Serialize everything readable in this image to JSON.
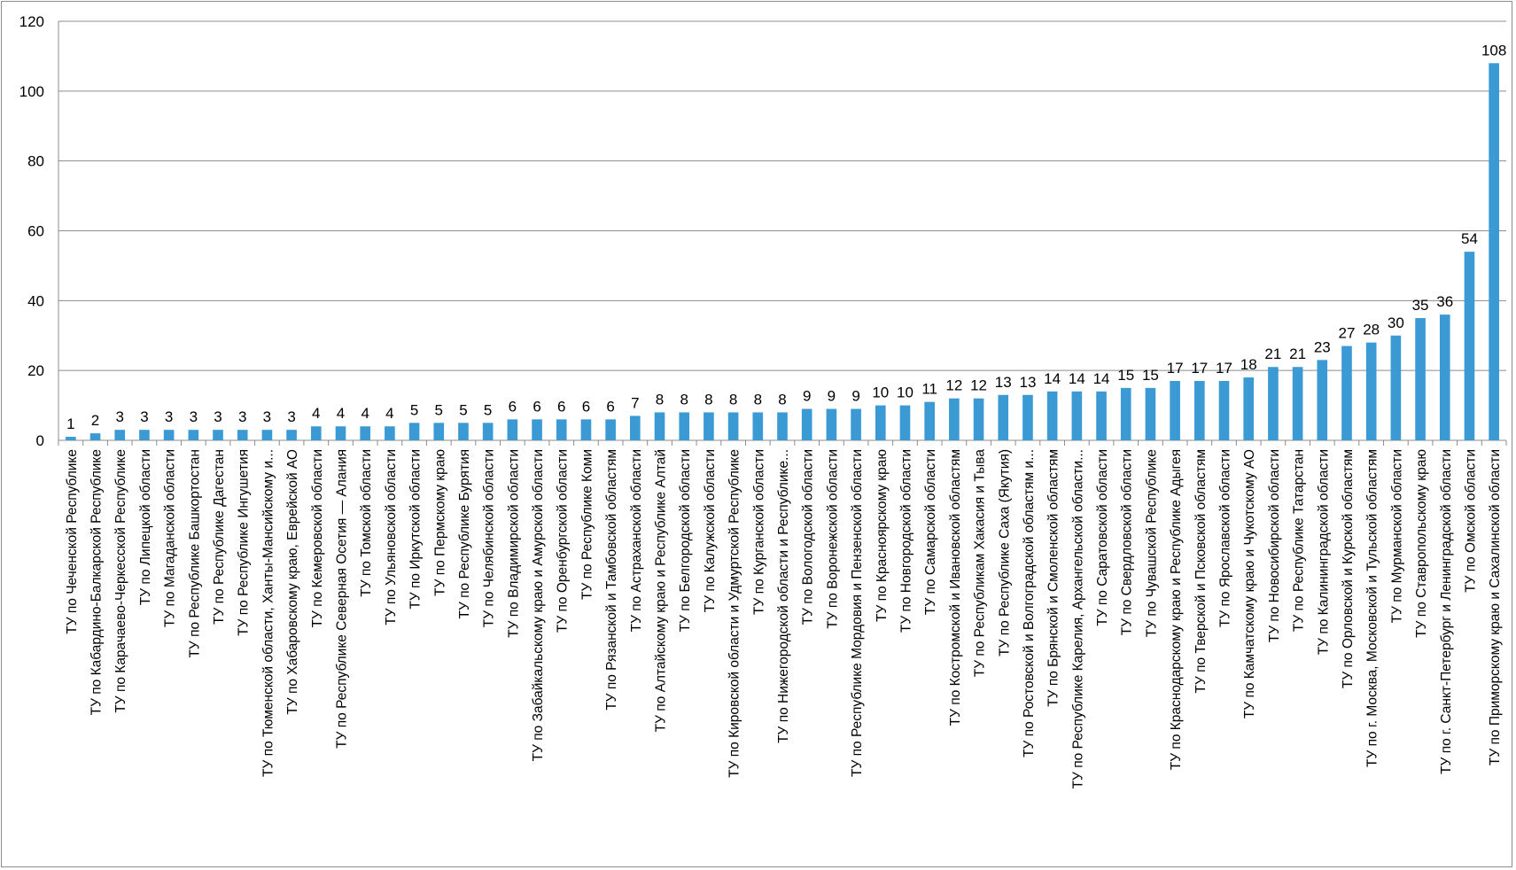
{
  "colors": {
    "bar": "#3b9ad4",
    "grid": "#8c8c8c",
    "axis": "#8c8c8c"
  },
  "chart_data": {
    "type": "bar",
    "title": "",
    "xlabel": "",
    "ylabel": "",
    "ylim": [
      0,
      120
    ],
    "yticks": [
      0,
      20,
      40,
      60,
      80,
      100,
      120
    ],
    "grid": true,
    "legend": "none",
    "categories": [
      "ТУ по Чеченской Республике",
      "ТУ по Кабардино-Балкарской Республике",
      "ТУ по Карачаево-Черкесской Республике",
      "ТУ по Липецкой области",
      "ТУ по Магаданской области",
      "ТУ по Республике Башкортостан",
      "ТУ по Республике Дагестан",
      "ТУ по Республике Ингушетия",
      "ТУ по Тюменской области, Ханты-Мансийскому и...",
      "ТУ по Хабаровскому краю, Еврейской АО",
      "ТУ по Кемеровской области",
      "ТУ по Республике Северная Осетия — Алания",
      "ТУ по Томской области",
      "ТУ по Ульяновской области",
      "ТУ по Иркутской области",
      "ТУ по Пермскому краю",
      "ТУ по Республике Бурятия",
      "ТУ по Челябинской области",
      "ТУ по Владимирской области",
      "ТУ по Забайкальскому краю и Амурской области",
      "ТУ по Оренбургской области",
      "ТУ по Республике Коми",
      "ТУ по Рязанской и Тамбовской областям",
      "ТУ по Астраханской области",
      "ТУ по Алтайскому краю и Республике Алтай",
      "ТУ по Белгородской области",
      "ТУ по Калужской области",
      "ТУ по Кировской области и Удмуртской Республике",
      "ТУ по Курганской области",
      "ТУ по Нижегородской области и Республике...",
      "ТУ по Вологодской области",
      "ТУ по Воронежской области",
      "ТУ по Республике Мордовия и Пензенской области",
      "ТУ по Красноярскому краю",
      "ТУ по Новгородской области",
      "ТУ по Самарской области",
      "ТУ по Костромской и Ивановской областям",
      "ТУ по Республикам Хакасия и Тыва",
      "ТУ по Республике Саха (Якутия)",
      "ТУ по Ростовской и Волгоградской областям и...",
      "ТУ по Брянской и Смоленской областям",
      "ТУ по Республике Карелия, Архангельской области...",
      "ТУ по Саратовской области",
      "ТУ по Свердловской области",
      "ТУ по Чувашской Республике",
      "ТУ по Краснодарскому краю и Республике Адыгея",
      "ТУ по Тверской и Псковской областям",
      "ТУ по Ярославской области",
      "ТУ по Камчатскому краю и Чукотскому АО",
      "ТУ по Новосибирской области",
      "ТУ по Республике Татарстан",
      "ТУ по Калининградской области",
      "ТУ по Орловской и Курской областям",
      "ТУ по г. Москва, Московской и Тульской областям",
      "ТУ по Мурманской области",
      "ТУ по Ставропольскому краю",
      "ТУ по г. Санкт-Петербург и Ленинградской области",
      "ТУ по Омской области",
      "ТУ по Приморскому краю и Сахалинской области"
    ],
    "values": [
      1,
      2,
      3,
      3,
      3,
      3,
      3,
      3,
      3,
      3,
      4,
      4,
      4,
      4,
      5,
      5,
      5,
      5,
      6,
      6,
      6,
      6,
      6,
      7,
      8,
      8,
      8,
      8,
      8,
      8,
      9,
      9,
      9,
      10,
      10,
      11,
      12,
      12,
      13,
      13,
      14,
      14,
      14,
      15,
      15,
      17,
      17,
      17,
      18,
      21,
      21,
      23,
      27,
      28,
      30,
      35,
      36,
      54,
      108
    ]
  }
}
